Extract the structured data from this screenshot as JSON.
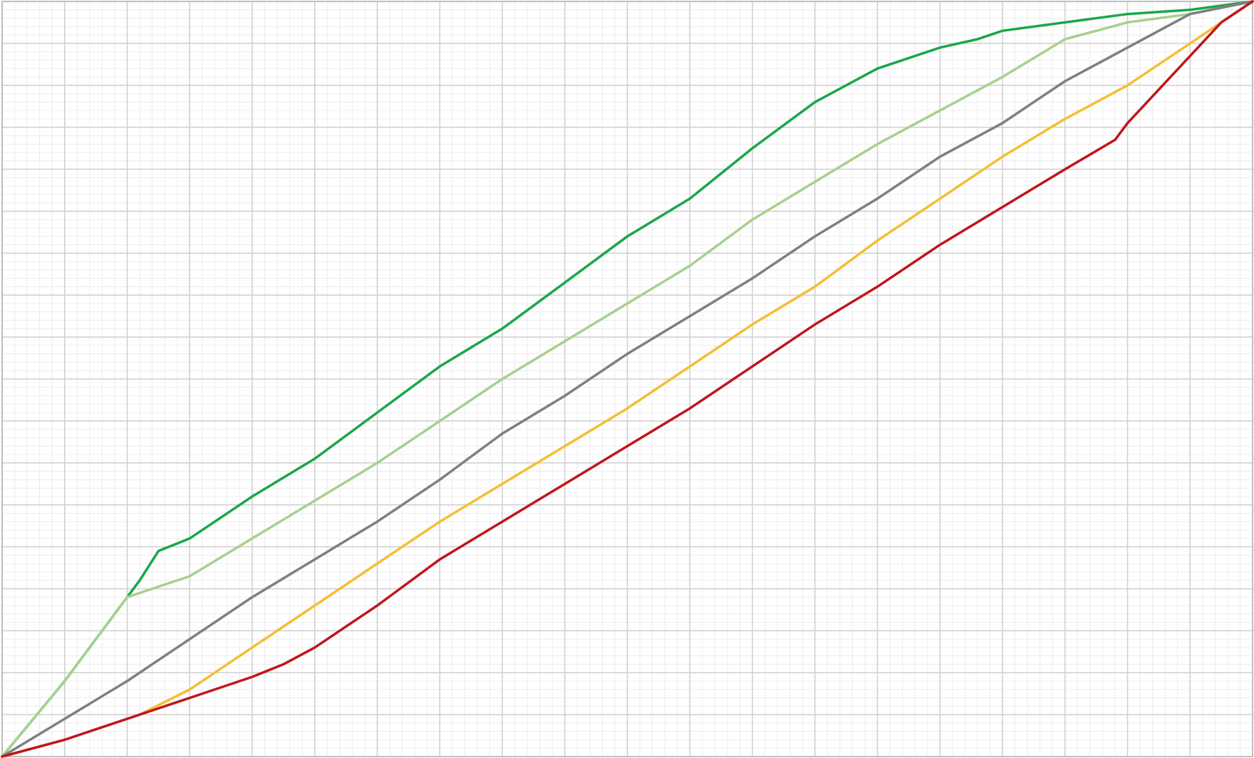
{
  "chart_data": {
    "type": "line",
    "title": "",
    "xlabel": "",
    "ylabel": "",
    "xlim": [
      0,
      20
    ],
    "ylim": [
      0,
      18
    ],
    "grid": true,
    "minor_grid": true,
    "legend": "none",
    "colors": {
      "major_grid": "#cfcfcf",
      "minor_grid": "#ececec",
      "border": "#bdbdbd"
    },
    "series": [
      {
        "color": "#1aa64a",
        "x": [
          0,
          0.5,
          1,
          1.5,
          2,
          2.2,
          2.5,
          3,
          4,
          5,
          6,
          7,
          8,
          9,
          10,
          11,
          12,
          13,
          14,
          15,
          15.6,
          16,
          17,
          18,
          19,
          19.5,
          20
        ],
        "y": [
          0,
          0.9,
          1.8,
          2.8,
          3.8,
          4.2,
          4.9,
          5.2,
          6.2,
          7.1,
          8.2,
          9.3,
          10.2,
          11.3,
          12.4,
          13.3,
          14.5,
          15.6,
          16.4,
          16.9,
          17.1,
          17.3,
          17.5,
          17.7,
          17.8,
          17.9,
          18
        ]
      },
      {
        "color": "#a8d08d",
        "x": [
          0,
          1,
          2,
          3,
          4,
          5,
          6,
          7,
          8,
          9,
          10,
          11,
          12,
          13,
          14,
          15,
          16,
          17,
          18,
          19,
          20
        ],
        "y": [
          0,
          1.8,
          3.8,
          4.3,
          5.2,
          6.1,
          7.0,
          8.0,
          9.0,
          9.9,
          10.8,
          11.7,
          12.8,
          13.7,
          14.6,
          15.4,
          16.2,
          17.1,
          17.5,
          17.7,
          18
        ]
      },
      {
        "color": "#7f7f7f",
        "x": [
          0,
          1,
          2,
          3,
          4,
          5,
          6,
          7,
          8,
          9,
          10,
          11,
          12,
          13,
          14,
          15,
          16,
          17,
          18,
          19,
          20
        ],
        "y": [
          0,
          0.9,
          1.8,
          2.8,
          3.8,
          4.7,
          5.6,
          6.6,
          7.7,
          8.6,
          9.6,
          10.5,
          11.4,
          12.4,
          13.3,
          14.3,
          15.1,
          16.1,
          16.9,
          17.7,
          18
        ]
      },
      {
        "color": "#f6bd35",
        "x": [
          0,
          1,
          2,
          2.2,
          3,
          4,
          5,
          6,
          7,
          8,
          9,
          10,
          11,
          12,
          13,
          14,
          15,
          16,
          17,
          18,
          19,
          19.5,
          20
        ],
        "y": [
          0,
          0.4,
          0.9,
          1.0,
          1.6,
          2.6,
          3.6,
          4.6,
          5.6,
          6.5,
          7.4,
          8.3,
          9.3,
          10.3,
          11.2,
          12.3,
          13.3,
          14.3,
          15.2,
          16.0,
          17.0,
          17.5,
          18
        ]
      },
      {
        "color": "#c0161c",
        "x": [
          0,
          1,
          2,
          2.2,
          3,
          4,
          4.5,
          5,
          6,
          7,
          8,
          9,
          10,
          11,
          12,
          13,
          14,
          15,
          16,
          17,
          17.8,
          18,
          19,
          19.5,
          20
        ],
        "y": [
          0,
          0.4,
          0.9,
          1.0,
          1.4,
          1.9,
          2.2,
          2.6,
          3.6,
          4.7,
          5.6,
          6.5,
          7.4,
          8.3,
          9.3,
          10.3,
          11.2,
          12.2,
          13.1,
          14.0,
          14.7,
          15.1,
          16.7,
          17.5,
          18
        ]
      }
    ]
  }
}
